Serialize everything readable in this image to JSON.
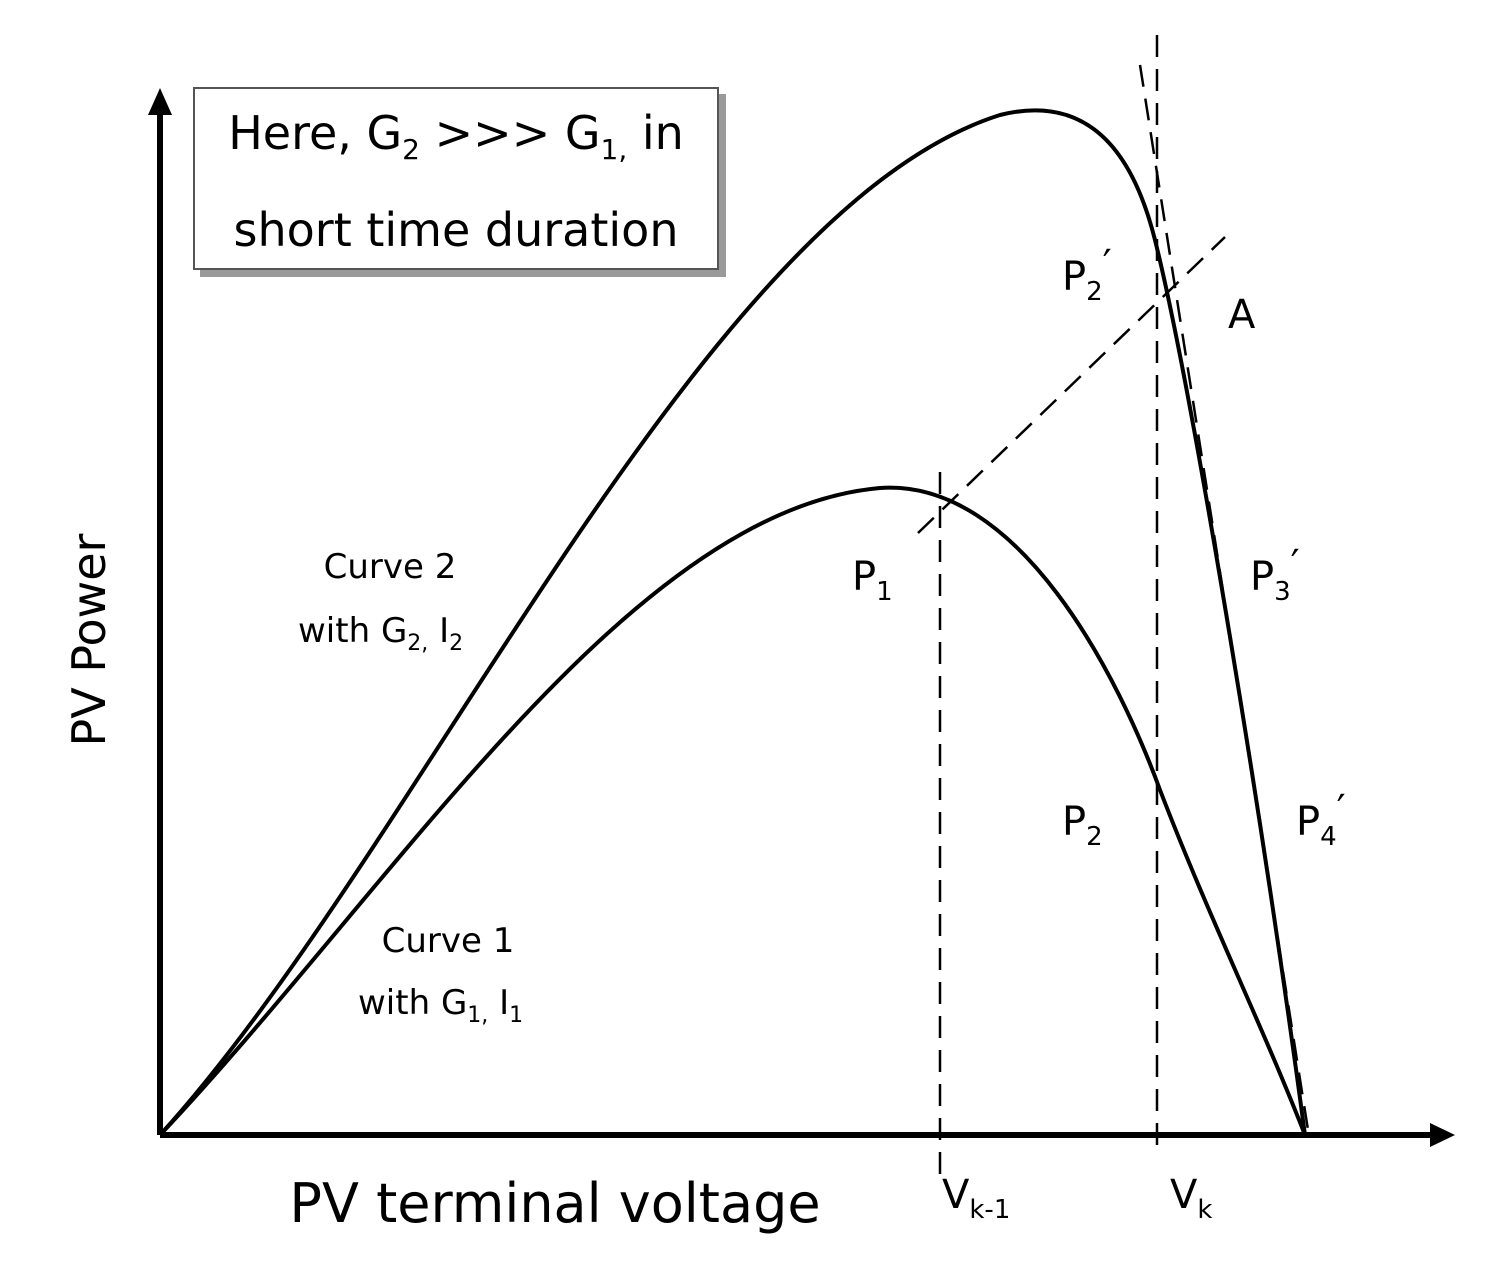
{
  "axes": {
    "y_label": "PV Power",
    "x_label": "PV terminal voltage"
  },
  "note": {
    "line1_prefix": "Here, G",
    "line1_sub1": "2",
    "line1_mid": " >>> G",
    "line1_sub2": "1,",
    "line1_suffix": " in",
    "line2": "short time duration"
  },
  "curves": {
    "curve2": {
      "title": "Curve 2",
      "with": "with G",
      "sub_g": "2,",
      "i": " I",
      "sub_i": "2"
    },
    "curve1": {
      "title": "Curve 1",
      "with": "with G",
      "sub_g": "1,",
      "i": " I",
      "sub_i": "1"
    }
  },
  "points": {
    "p1": {
      "base": "P",
      "sub": "1",
      "prime": ""
    },
    "p2": {
      "base": "P",
      "sub": "2",
      "prime": ""
    },
    "p2p": {
      "base": "P",
      "sub": "2",
      "prime": "′"
    },
    "p3p": {
      "base": "P",
      "sub": "3",
      "prime": "′"
    },
    "p4p": {
      "base": "P",
      "sub": "4",
      "prime": "′"
    },
    "a": "A"
  },
  "voltage_marks": {
    "vk1": {
      "base": "V",
      "sub": "k-1"
    },
    "vk": {
      "base": "V",
      "sub": "k"
    }
  }
}
